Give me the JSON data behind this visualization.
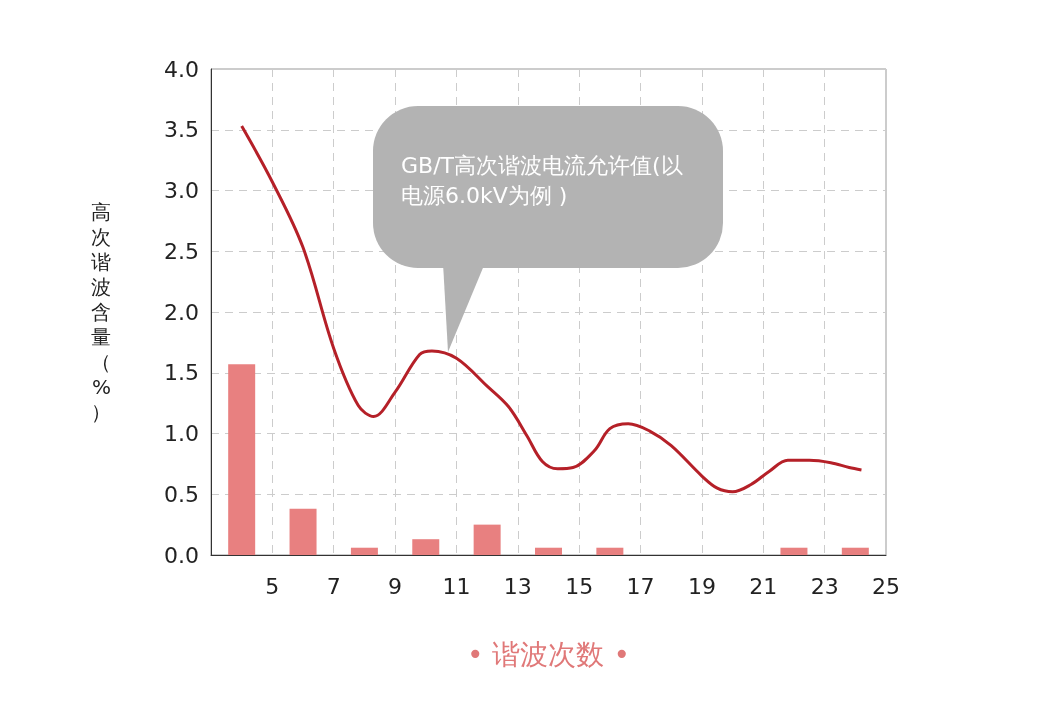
{
  "chart_data": {
    "type": "bar",
    "xlabel": "• 谐波次数 •",
    "ylabel": "高次谐波含量（%）",
    "xlim": [
      3,
      25
    ],
    "xticks": [
      5,
      7,
      9,
      11,
      13,
      15,
      17,
      19,
      21,
      23,
      25
    ],
    "ylim": [
      0,
      4
    ],
    "yticks": [
      {
        "value": 0,
        "label": "0.0"
      },
      {
        "value": 0.5,
        "label": "0.5"
      },
      {
        "value": 1,
        "label": "1.0"
      },
      {
        "value": 1.5,
        "label": "1.5"
      },
      {
        "value": 2,
        "label": "2.0"
      },
      {
        "value": 2.5,
        "label": "2.5"
      },
      {
        "value": 3,
        "label": "3.0"
      },
      {
        "value": 3.5,
        "label": "3.5"
      },
      {
        "value": 4,
        "label": "4.0"
      }
    ],
    "grid": true,
    "series": [
      {
        "color": "#e88080",
        "x": [
          4,
          6,
          8,
          10,
          12,
          14,
          16,
          22,
          24
        ],
        "values": [
          1.57,
          0.38,
          0.06,
          0.13,
          0.25,
          0.06,
          0.06,
          0.06,
          0.06
        ]
      },
      {
        "type": "line",
        "color": "#b52028",
        "marker": "none",
        "x": [
          4,
          5,
          6,
          7,
          7.8,
          8.3,
          9,
          9.8,
          10.2,
          11,
          12,
          12.7,
          13.3,
          13.8,
          14.3,
          14.8,
          15.5,
          16,
          16.6,
          17.3,
          18,
          19,
          19.5,
          20,
          20.6,
          21.2,
          21.8,
          22.5,
          23.2,
          23.8,
          24.2
        ],
        "values": [
          3.53,
          3.07,
          2.53,
          1.7,
          1.23,
          1.14,
          1.34,
          1.65,
          1.68,
          1.62,
          1.39,
          1.22,
          0.98,
          0.77,
          0.71,
          0.72,
          0.86,
          1.04,
          1.08,
          1.02,
          0.9,
          0.65,
          0.55,
          0.52,
          0.58,
          0.69,
          0.78,
          0.78,
          0.76,
          0.72,
          0.7
        ]
      }
    ],
    "annotations": [
      "GB/T高次谐波电流允许值(以电源6.0kV为例 )"
    ]
  }
}
